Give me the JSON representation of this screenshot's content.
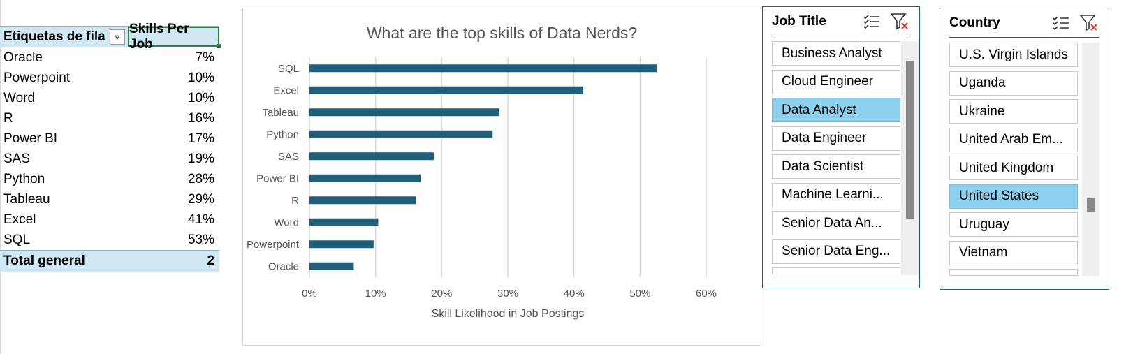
{
  "pivot": {
    "header_rows": "Etiquetas de fila",
    "header_values": "Skills Per Job",
    "filter_icon": "filter-dropdown-icon",
    "rows": [
      {
        "label": "Oracle",
        "value": "7%"
      },
      {
        "label": "Powerpoint",
        "value": "10%"
      },
      {
        "label": "Word",
        "value": "10%"
      },
      {
        "label": "R",
        "value": "16%"
      },
      {
        "label": "Power BI",
        "value": "17%"
      },
      {
        "label": "SAS",
        "value": "19%"
      },
      {
        "label": "Python",
        "value": "28%"
      },
      {
        "label": "Tableau",
        "value": "29%"
      },
      {
        "label": "Excel",
        "value": "41%"
      },
      {
        "label": "SQL",
        "value": "53%"
      }
    ],
    "total_label": "Total general",
    "total_value": "2"
  },
  "chart_data": {
    "type": "bar",
    "orientation": "horizontal",
    "title": "What are the top skills of Data Nerds?",
    "xlabel": "Skill Likelihood in Job Postings",
    "ylabel": "",
    "categories": [
      "SQL",
      "Excel",
      "Tableau",
      "Python",
      "SAS",
      "Power BI",
      "R",
      "Word",
      "Powerpoint",
      "Oracle"
    ],
    "values": [
      0.525,
      0.414,
      0.287,
      0.277,
      0.188,
      0.168,
      0.161,
      0.104,
      0.097,
      0.067
    ],
    "xlim": [
      0,
      0.6
    ],
    "xticks": [
      "0%",
      "10%",
      "20%",
      "30%",
      "40%",
      "50%",
      "60%"
    ],
    "grid": true,
    "legend": "none",
    "bar_color": "#1f5f7a"
  },
  "slicers": {
    "job_title": {
      "title": "Job Title",
      "multiselect_icon": "multi-select-icon",
      "clear_filter_icon": "clear-filter-icon",
      "items": [
        {
          "label": "Business Analyst",
          "selected": false
        },
        {
          "label": "Cloud Engineer",
          "selected": false
        },
        {
          "label": "Data Analyst",
          "selected": true
        },
        {
          "label": "Data Engineer",
          "selected": false
        },
        {
          "label": "Data Scientist",
          "selected": false
        },
        {
          "label": "Machine Learni...",
          "selected": false
        },
        {
          "label": "Senior Data An...",
          "selected": false
        },
        {
          "label": "Senior Data Eng...",
          "selected": false
        }
      ]
    },
    "country": {
      "title": "Country",
      "multiselect_icon": "multi-select-icon",
      "clear_filter_icon": "clear-filter-icon",
      "items": [
        {
          "label": "U.S. Virgin Islands",
          "selected": false
        },
        {
          "label": "Uganda",
          "selected": false
        },
        {
          "label": "Ukraine",
          "selected": false
        },
        {
          "label": "United Arab Em...",
          "selected": false
        },
        {
          "label": "United Kingdom",
          "selected": false
        },
        {
          "label": "United States",
          "selected": true
        },
        {
          "label": "Uruguay",
          "selected": false
        },
        {
          "label": "Vietnam",
          "selected": false
        }
      ]
    }
  },
  "colors": {
    "accent": "#1f5f7a",
    "selected": "#8cd0ee",
    "pivot_header": "#cfe8f4"
  }
}
